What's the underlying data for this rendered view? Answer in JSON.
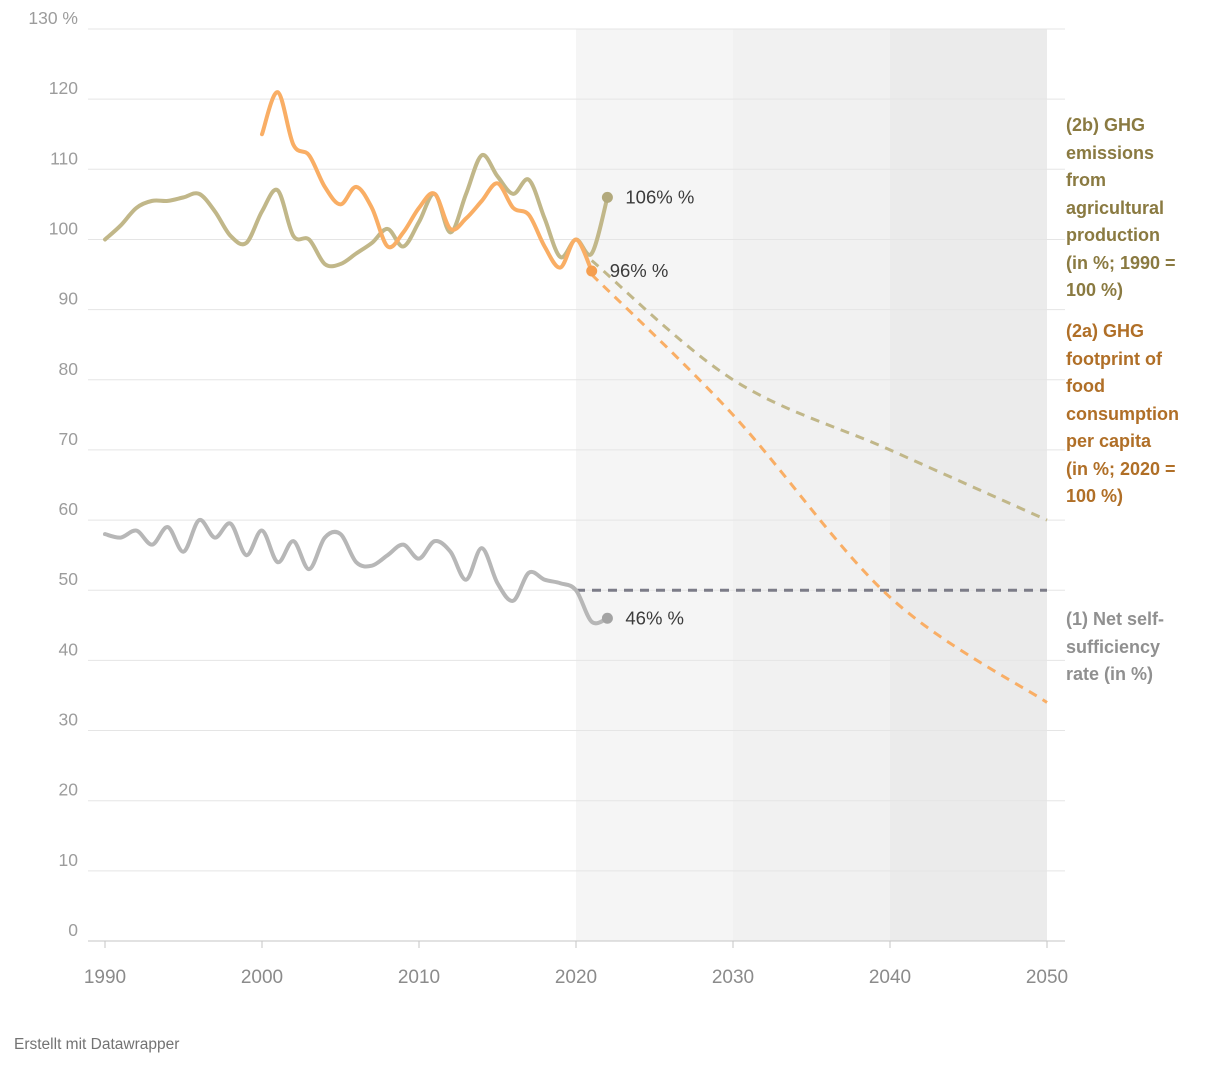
{
  "footer": {
    "credit": "Erstellt mit Datawrapper"
  },
  "legend": {
    "entries": [
      {
        "id": "ghg-agricultural-production",
        "text": "(2b) GHG\nemissions\nfrom\nagricultural\nproduction\n(in %; 1990 =\n100 %)",
        "color": "#8a7a41"
      },
      {
        "id": "ghg-food-footprint",
        "text": "(2a) GHG\nfootprint of\nfood\nconsumption\nper capita\n(in %; 2020 =\n100 %)",
        "color": "#b06f27"
      },
      {
        "id": "net-self-sufficiency",
        "text": "(1) Net self-\nsufficiency\nrate (in %)",
        "color": "#909090"
      }
    ]
  },
  "chart_data": {
    "type": "line",
    "title": "",
    "xlabel": "",
    "ylabel": "",
    "grid": true,
    "legend_position": "right",
    "x_axis": {
      "min": 1990,
      "max": 2050,
      "ticks": [
        1990,
        2000,
        2010,
        2020,
        2030,
        2040,
        2050
      ]
    },
    "y_axis": {
      "min": 0,
      "max": 130,
      "ticks": [
        {
          "value": 0,
          "label": "0"
        },
        {
          "value": 10,
          "label": "10"
        },
        {
          "value": 20,
          "label": "20"
        },
        {
          "value": 30,
          "label": "30"
        },
        {
          "value": 40,
          "label": "40"
        },
        {
          "value": 50,
          "label": "50"
        },
        {
          "value": 60,
          "label": "60"
        },
        {
          "value": 70,
          "label": "70"
        },
        {
          "value": 80,
          "label": "80"
        },
        {
          "value": 90,
          "label": "90"
        },
        {
          "value": 100,
          "label": "100"
        },
        {
          "value": 110,
          "label": "110"
        },
        {
          "value": 120,
          "label": "120"
        },
        {
          "value": 130,
          "label": "130 %"
        }
      ]
    },
    "projection_bands": [
      {
        "from": 2020,
        "to": 2030,
        "color": "#f5f5f5"
      },
      {
        "from": 2030,
        "to": 2040,
        "color": "#f1f1f1"
      },
      {
        "from": 2040,
        "to": 2050,
        "color": "#ebebeb"
      }
    ],
    "series": [
      {
        "id": "agri-production",
        "name": "(2b) GHG emissions from agricultural production (in %; 1990 = 100 %)",
        "color": "#c1b789",
        "dot_color": "#b2a97c",
        "x_start": 1990,
        "values": [
          100,
          102,
          104.5,
          105.5,
          105.5,
          106,
          106.5,
          104,
          100.5,
          99.5,
          104,
          107,
          100.5,
          100,
          96.5,
          96.5,
          98,
          99.5,
          101.5,
          99,
          102.5,
          106.5,
          101,
          106.5,
          112,
          109,
          106.5,
          108.5,
          103,
          97.5,
          100,
          98,
          106
        ],
        "end_dot": {
          "x": 2022,
          "y": 106
        }
      },
      {
        "id": "food-footprint",
        "name": "(2a) GHG footprint of food consumption per capita (in %; 2020 = 100 %)",
        "color": "#f9ae65",
        "dot_color": "#f59e4f",
        "x_start": 2000,
        "values": [
          115,
          121,
          113.5,
          112,
          107.5,
          105,
          107.5,
          104.5,
          99,
          101,
          104.5,
          106.5,
          101.5,
          103,
          105.5,
          108,
          104.5,
          103.5,
          99,
          96,
          100,
          95.5
        ],
        "end_dot": {
          "x": 2021,
          "y": 95.5
        }
      },
      {
        "id": "self-sufficiency",
        "name": "(1) Net self-sufficiency rate (in %)",
        "color": "#b7b7b7",
        "dot_color": "#a3a3a3",
        "x_start": 1990,
        "values": [
          58,
          57.5,
          58.5,
          56.5,
          59,
          55.5,
          60,
          57.5,
          59.5,
          55,
          58.5,
          54,
          57,
          53,
          57.5,
          58,
          54,
          53.5,
          55,
          56.5,
          54.5,
          57,
          55.5,
          51.5,
          56,
          51,
          48.5,
          52.5,
          51.5,
          51,
          50,
          45.5,
          46
        ],
        "end_dot": {
          "x": 2022,
          "y": 46
        }
      }
    ],
    "projections": [
      {
        "series": "self-sufficiency",
        "color": "#7c7c88",
        "x": [
          2020,
          2050
        ],
        "values": [
          50,
          50
        ]
      },
      {
        "series": "agri-production",
        "color": "#c1b789",
        "x": [
          2021,
          2030,
          2040,
          2050
        ],
        "values": [
          97,
          80,
          70,
          60
        ]
      },
      {
        "series": "food-footprint",
        "color": "#f9ae65",
        "x": [
          2021,
          2030,
          2040,
          2050
        ],
        "values": [
          95,
          75,
          49,
          34
        ]
      }
    ],
    "annotations": [
      {
        "series": "agri-production",
        "text": "106% %",
        "x": 2022,
        "y": 106
      },
      {
        "series": "food-footprint",
        "text": "96% %",
        "x": 2021,
        "y": 95.5
      },
      {
        "series": "self-sufficiency",
        "text": "46% %",
        "x": 2022,
        "y": 46
      }
    ]
  }
}
